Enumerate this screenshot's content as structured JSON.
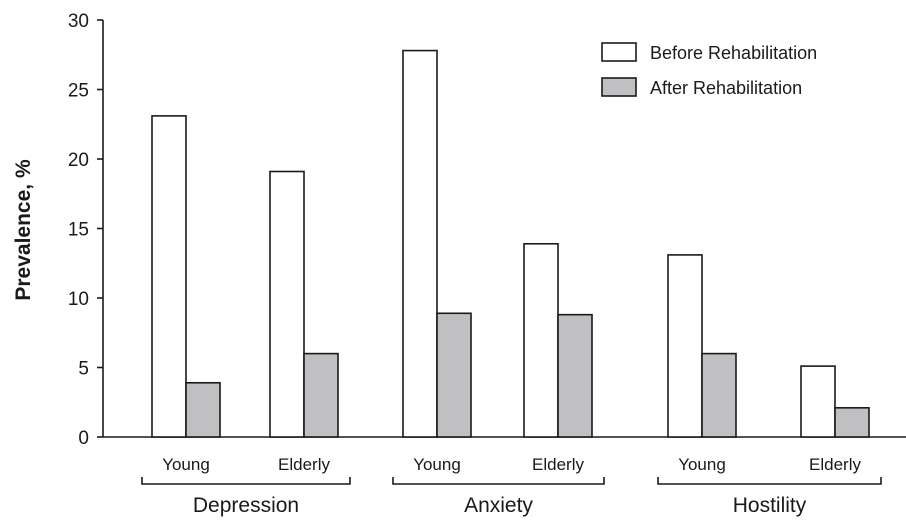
{
  "chart_data": {
    "type": "bar",
    "ylabel": "Prevalence, %",
    "xlabel": "",
    "ylim": [
      0,
      30
    ],
    "yticks": [
      0,
      5,
      10,
      15,
      20,
      25,
      30
    ],
    "groups": [
      {
        "name": "Depression",
        "categories": [
          "Young",
          "Elderly"
        ]
      },
      {
        "name": "Anxiety",
        "categories": [
          "Young",
          "Elderly"
        ]
      },
      {
        "name": "Hostility",
        "categories": [
          "Young",
          "Elderly"
        ]
      }
    ],
    "categories": [
      "Depression - Young",
      "Depression - Elderly",
      "Anxiety - Young",
      "Anxiety - Elderly",
      "Hostility - Young",
      "Hostility - Elderly"
    ],
    "series": [
      {
        "name": "Before Rehabilitation",
        "color": "#ffffff",
        "values": [
          23.1,
          19.1,
          27.8,
          13.9,
          13.1,
          5.1
        ]
      },
      {
        "name": "After Rehabilitation",
        "color": "#c0c0c2",
        "values": [
          3.9,
          6.0,
          8.9,
          8.8,
          6.0,
          2.1
        ]
      }
    ],
    "legend_position": "top-right",
    "grid": false
  }
}
